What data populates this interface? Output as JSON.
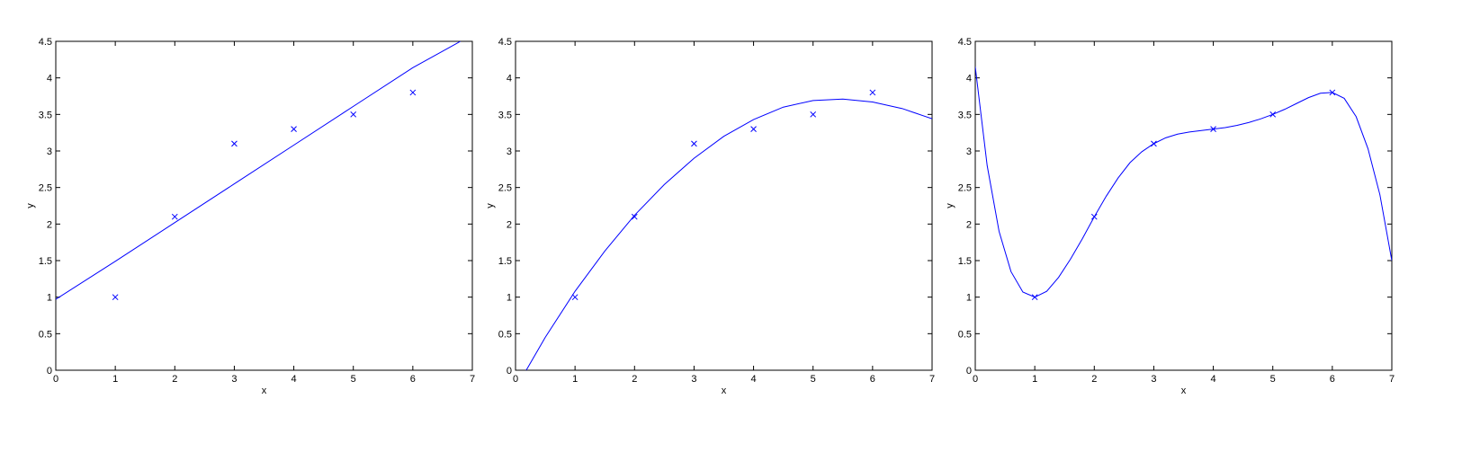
{
  "chart_data": [
    {
      "type": "scatter",
      "title": "",
      "xlabel": "x",
      "ylabel": "y",
      "xlim": [
        0,
        7
      ],
      "ylim": [
        0,
        4.5
      ],
      "x_ticks": [
        "0",
        "1",
        "2",
        "3",
        "4",
        "5",
        "6",
        "7"
      ],
      "y_ticks": [
        "0",
        "0.5",
        "1",
        "1.5",
        "2",
        "2.5",
        "3",
        "3.5",
        "4",
        "4.5"
      ],
      "grid": false,
      "color": "#0000ff",
      "points": {
        "marker": "x",
        "x": [
          1,
          2,
          3,
          4,
          5,
          6
        ],
        "y": [
          1.0,
          2.1,
          3.1,
          3.3,
          3.5,
          3.8
        ]
      },
      "fit": {
        "x": [
          0,
          1,
          2,
          3,
          4,
          5,
          6,
          6.8
        ],
        "y": [
          0.97,
          1.49,
          2.02,
          2.55,
          3.08,
          3.61,
          4.14,
          4.5
        ]
      }
    },
    {
      "type": "scatter",
      "title": "",
      "xlabel": "x",
      "ylabel": "y",
      "xlim": [
        0,
        7
      ],
      "ylim": [
        0,
        4.5
      ],
      "x_ticks": [
        "0",
        "1",
        "2",
        "3",
        "4",
        "5",
        "6",
        "7"
      ],
      "y_ticks": [
        "0",
        "0.5",
        "1",
        "1.5",
        "2",
        "2.5",
        "3",
        "3.5",
        "4",
        "4.5"
      ],
      "grid": false,
      "color": "#0000ff",
      "points": {
        "marker": "x",
        "x": [
          1,
          2,
          3,
          4,
          5,
          6
        ],
        "y": [
          1.0,
          2.1,
          3.1,
          3.3,
          3.5,
          3.8
        ]
      },
      "fit": {
        "x": [
          0.18,
          0.5,
          1,
          1.5,
          2,
          2.5,
          3,
          3.5,
          4,
          4.5,
          5,
          5.5,
          6,
          6.5,
          7
        ],
        "y": [
          0.0,
          0.45,
          1.08,
          1.63,
          2.12,
          2.54,
          2.9,
          3.2,
          3.43,
          3.6,
          3.69,
          3.71,
          3.67,
          3.58,
          3.44
        ]
      }
    },
    {
      "type": "scatter",
      "title": "",
      "xlabel": "x",
      "ylabel": "y",
      "xlim": [
        0,
        7
      ],
      "ylim": [
        0,
        4.5
      ],
      "x_ticks": [
        "0",
        "1",
        "2",
        "3",
        "4",
        "5",
        "6",
        "7"
      ],
      "y_ticks": [
        "0",
        "0.5",
        "1",
        "1.5",
        "2",
        "2.5",
        "3",
        "3.5",
        "4",
        "4.5"
      ],
      "grid": false,
      "color": "#0000ff",
      "points": {
        "marker": "x",
        "x": [
          1,
          2,
          3,
          4,
          5,
          6
        ],
        "y": [
          1.0,
          2.1,
          3.1,
          3.3,
          3.5,
          3.8
        ]
      },
      "fit": {
        "x": [
          0,
          0.2,
          0.4,
          0.6,
          0.8,
          1.0,
          1.2,
          1.4,
          1.6,
          1.8,
          2.0,
          2.2,
          2.4,
          2.6,
          2.8,
          3.0,
          3.2,
          3.4,
          3.6,
          3.8,
          4.0,
          4.2,
          4.4,
          4.6,
          4.8,
          5.0,
          5.2,
          5.4,
          5.6,
          5.8,
          6.0,
          6.2,
          6.4,
          6.6,
          6.8,
          7.0
        ],
        "y": [
          4.15,
          2.8,
          1.9,
          1.35,
          1.07,
          1.0,
          1.08,
          1.27,
          1.52,
          1.8,
          2.1,
          2.38,
          2.63,
          2.84,
          2.99,
          3.1,
          3.18,
          3.23,
          3.26,
          3.28,
          3.3,
          3.32,
          3.35,
          3.39,
          3.44,
          3.5,
          3.57,
          3.65,
          3.73,
          3.79,
          3.8,
          3.72,
          3.47,
          3.03,
          2.4,
          1.5
        ]
      }
    }
  ]
}
